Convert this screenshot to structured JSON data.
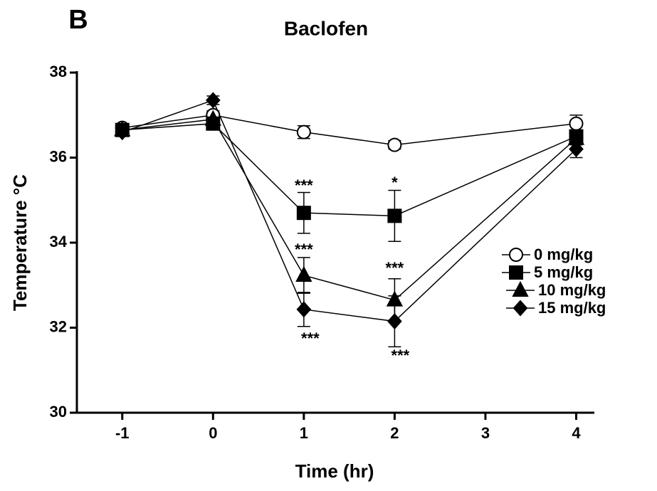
{
  "chart_data": {
    "type": "line",
    "panel_label": "B",
    "title": "Baclofen",
    "x_label": "Time (hr)",
    "y_label": "Temperature °C",
    "x": [
      -1,
      0,
      1,
      2,
      4
    ],
    "series": [
      {
        "name": "0 mg/kg",
        "color": "#000000",
        "marker": "circle",
        "values": [
          36.7,
          37.0,
          36.6,
          36.3,
          36.8
        ],
        "errors": [
          0.1,
          0.1,
          0.15,
          0.1,
          0.2
        ]
      },
      {
        "name": "5 mg/kg",
        "color": "#000000",
        "marker": "square",
        "values": [
          36.65,
          36.8,
          34.7,
          34.63,
          36.5
        ],
        "errors": [
          0.1,
          0.1,
          0.48,
          0.6,
          0.15
        ]
      },
      {
        "name": "10 mg/kg",
        "color": "#000000",
        "marker": "triangle",
        "values": [
          36.65,
          36.9,
          33.23,
          32.65,
          36.45
        ],
        "errors": [
          0.1,
          0.1,
          0.42,
          0.5,
          0.15
        ]
      },
      {
        "name": "15 mg/kg",
        "color": "#000000",
        "marker": "diamond",
        "values": [
          36.6,
          37.35,
          32.43,
          32.15,
          36.2
        ],
        "errors": [
          0.1,
          0.1,
          0.4,
          0.6,
          0.2
        ]
      }
    ],
    "annotations": [
      {
        "text": "***",
        "x": 1
      },
      {
        "text": "*",
        "x": 2
      },
      {
        "text": "***",
        "x": 1
      },
      {
        "text": "***",
        "x": 2
      },
      {
        "text": "***",
        "x": 1
      },
      {
        "text": "***",
        "x": 2
      }
    ],
    "xlim": [
      -1.5,
      4.2
    ],
    "xticks": [
      -1,
      0,
      1,
      2,
      3,
      4
    ],
    "ylim": [
      30,
      38
    ],
    "yticks": [
      30,
      32,
      34,
      36,
      38
    ],
    "legend": "right"
  }
}
